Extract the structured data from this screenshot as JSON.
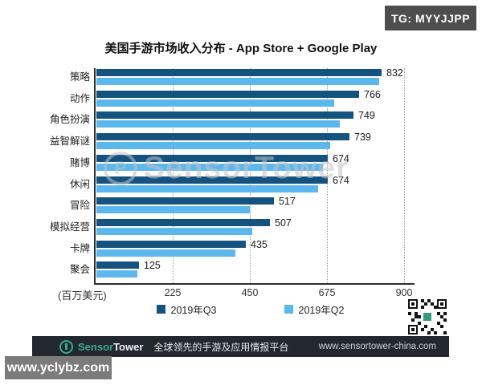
{
  "top_badge": {
    "label": "TG: MYYJJPP",
    "background": "#4d4d4d"
  },
  "overlay_badge": {
    "label": "www.yclybz.com",
    "background": "#7b7b7b"
  },
  "watermark": {
    "text": "SensorTower"
  },
  "footer": {
    "brand_sensor": "Sensor",
    "brand_tower": "Tower",
    "tagline": "全球领先的手游及应用情报平台",
    "url": "www.sensortower-china.com",
    "background": "#23272e",
    "brand_color": "#2fae89"
  },
  "chart_data": {
    "type": "bar",
    "orientation": "horizontal",
    "title": "美国手游市场收入分布 - App Store + Google Play",
    "xlabel": "(百万美元)",
    "xlim": [
      0,
      900
    ],
    "x_ticks": [
      225,
      450,
      675,
      900
    ],
    "grid": "dotted-vertical",
    "legend_position": "bottom",
    "categories": [
      "策略",
      "动作",
      "角色扮演",
      "益智解谜",
      "赌博",
      "休闲",
      "冒险",
      "模拟经营",
      "卡牌",
      "聚会"
    ],
    "series": [
      {
        "name": "2019年Q3",
        "color": "#15537f",
        "labeled": true,
        "values": [
          832,
          766,
          749,
          739,
          674,
          674,
          517,
          507,
          435,
          125
        ]
      },
      {
        "name": "2019年Q2",
        "color": "#5bb8ec",
        "labeled": false,
        "values_estimated_from_pixels": true,
        "values": [
          825,
          693,
          710,
          683,
          660,
          648,
          447,
          455,
          405,
          119
        ]
      }
    ]
  }
}
